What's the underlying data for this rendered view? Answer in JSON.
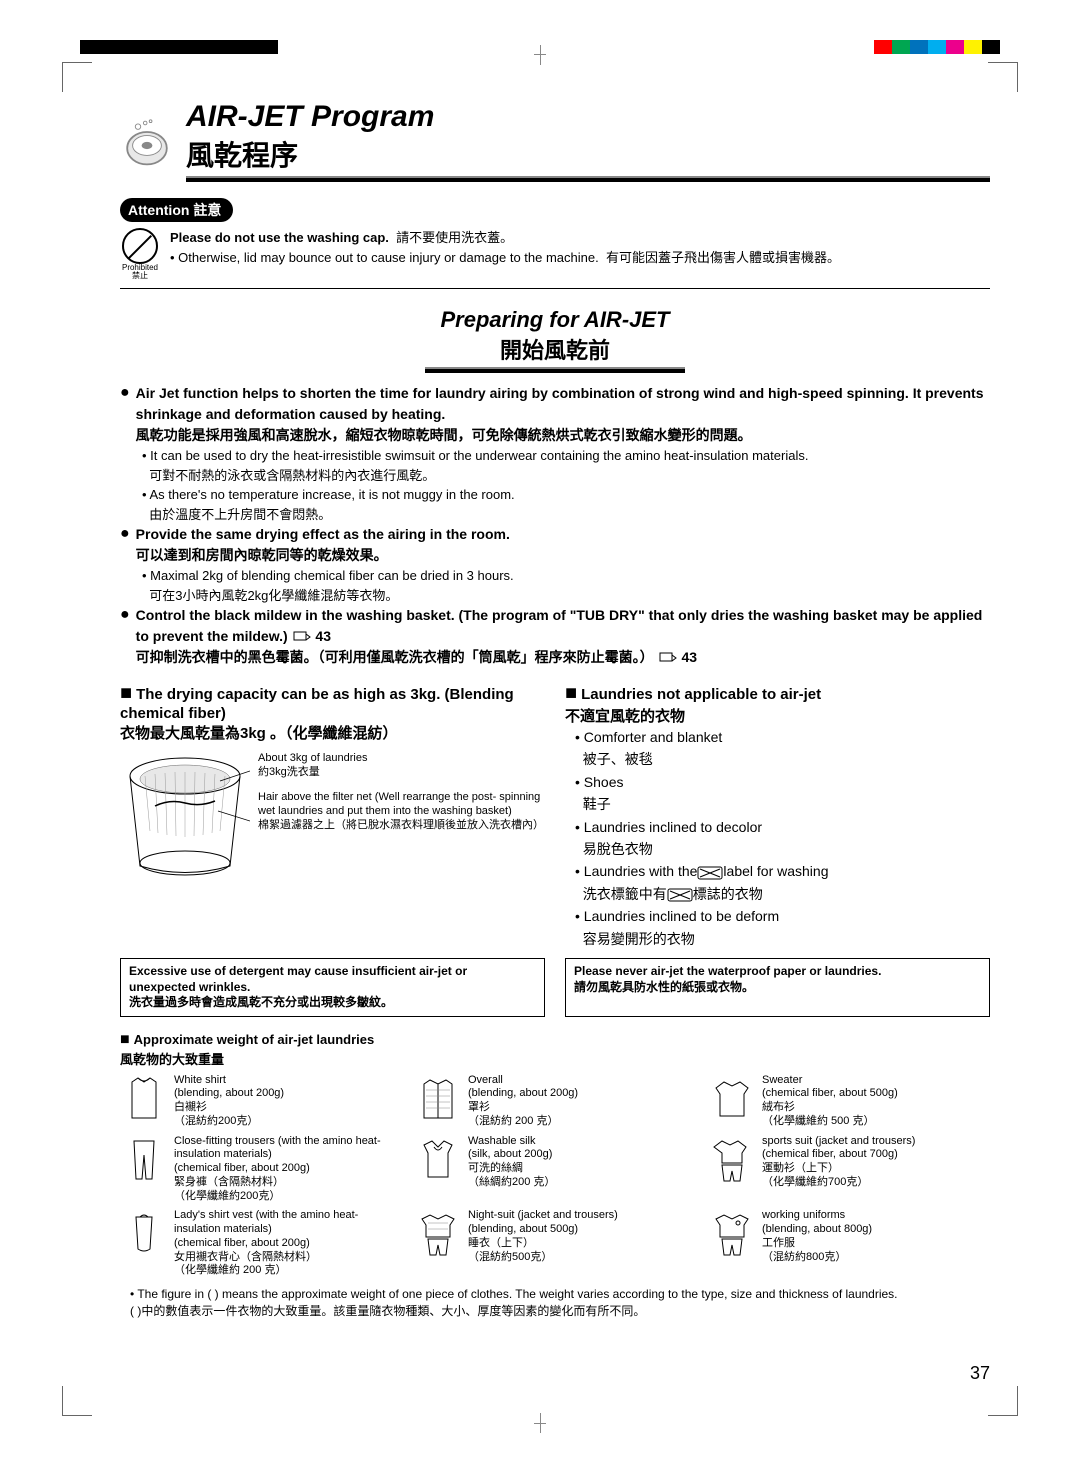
{
  "title": {
    "en": "AIR-JET Program",
    "cn": "風乾程序"
  },
  "attention": {
    "badge": "Attention 註意",
    "prohibit_label": "Prohibited\n禁止",
    "line1_en": "Please do not use the washing cap.",
    "line1_cn": "請不要使用洗衣蓋。",
    "line2_en": "• Otherwise, lid may bounce out to cause injury or damage to the machine.",
    "line2_cn": "有可能因蓋子飛出傷害人體或損害機器。"
  },
  "section": {
    "en": "Preparing for AIR-JET",
    "cn": "開始風乾前"
  },
  "bullets": [
    {
      "main_en": "Air Jet function helps to shorten the time for laundry airing by combination of strong wind and high-speed spinning. It prevents shrinkage and deformation caused by heating.",
      "main_cn": "風乾功能是採用強風和高速脫水，縮短衣物晾乾時間，可免除傳統熱烘式乾衣引致縮水變形的問題。",
      "subs": [
        {
          "en": "• It can be used to dry the heat-irresistible swimsuit or the underwear containing the amino heat-insulation materials.",
          "cn": "可對不耐熱的泳衣或含隔熱材料的內衣進行風乾。"
        },
        {
          "en": "• As there's no temperature increase, it is not muggy in the room.",
          "cn": "由於溫度不上升房間不會悶熱。"
        }
      ]
    },
    {
      "main_en": "Provide the same drying effect as the airing in the room.",
      "main_cn": "可以達到和房間內晾乾同等的乾燥效果。",
      "subs": [
        {
          "en": "• Maximal 2kg of blending chemical fiber can be dried in 3 hours.",
          "cn": "可在3小時內風乾2kg化學纖維混紡等衣物。"
        }
      ]
    },
    {
      "main_en": "Control the black mildew in the washing basket. (The program of \"TUB DRY\" that only dries the washing basket may be applied to prevent the mildew.)",
      "main_cn": "可抑制洗衣槽中的黑色霉菌。（可利用僅風乾洗衣槽的「筒風乾」程序來防止霉菌。）",
      "ref": "43",
      "subs": []
    }
  ],
  "left_col": {
    "title_en": "The drying capacity can be as high as 3kg. (Blending chemical fiber)",
    "title_cn": "衣物最大風乾量為3kg 。（化學纖維混紡）",
    "label1_en": "About 3kg of laundries",
    "label1_cn": "約3kg洗衣量",
    "label2_en": "Hair above the filter net (Well rearrange the post- spinning wet laundries and put them into the washing basket)",
    "label2_cn": "棉絮過濾器之上（將已脫水濕衣料理順後並放入洗衣槽內）"
  },
  "right_col": {
    "title_en": "Laundries not applicable to air-jet",
    "title_cn": "不適宜風乾的衣物",
    "items": [
      {
        "en": "• Comforter and blanket",
        "cn": "被子、被毯"
      },
      {
        "en": "• Shoes",
        "cn": "鞋子"
      },
      {
        "en": "• Laundries inclined to decolor",
        "cn": "易脫色衣物"
      },
      {
        "en": "• Laundries with the",
        "en2": "label for washing",
        "cn": "洗衣標籤中有",
        "cn2": "標誌的衣物",
        "icon": true
      },
      {
        "en": "• Laundries inclined to be deform",
        "cn": "容易變開形的衣物"
      }
    ]
  },
  "warn": {
    "left_en": "Excessive use of detergent may cause insufficient air-jet or unexpected wrinkles.",
    "left_cn": "洗衣量過多時會造成風乾不充分或出現較多皺紋。",
    "right_en": "Please never air-jet the waterproof paper or laundries.",
    "right_cn": "請勿風乾具防水性的紙張或衣物。"
  },
  "weight": {
    "title_en": "Approximate weight of air-jet laundries",
    "title_cn": "風乾物的大致重量",
    "items": [
      {
        "name_en": "White shirt",
        "detail_en": "(blending, about 200g)",
        "name_cn": "白襯衫",
        "detail_cn": "（混紡約200克）"
      },
      {
        "name_en": "Overall",
        "detail_en": "(blending, about 200g)",
        "name_cn": "罩衫",
        "detail_cn": "（混紡約 200 克）"
      },
      {
        "name_en": "Sweater",
        "detail_en": "(chemical fiber, about 500g)",
        "name_cn": "絨布衫",
        "detail_cn": "（化學纖維約 500 克）"
      },
      {
        "name_en": "Close-fitting trousers (with the amino heat-insulation materials)",
        "detail_en": "(chemical fiber, about 200g)",
        "name_cn": "緊身褲（含隔熱材料）",
        "detail_cn": "（化學纖維約200克）"
      },
      {
        "name_en": "Washable silk",
        "detail_en": "(silk, about 200g)",
        "name_cn": "可洗的絲綢",
        "detail_cn": "（絲綢約200 克）"
      },
      {
        "name_en": "sports suit (jacket and trousers)",
        "detail_en": "(chemical fiber, about 700g)",
        "name_cn": "運動衫（上下）",
        "detail_cn": "（化學纖維約700克）"
      },
      {
        "name_en": "Lady's shirt vest (with the amino heat- insulation materials)",
        "detail_en": "(chemical fiber, about 200g)",
        "name_cn": "女用襯衣背心（含隔熱材料）",
        "detail_cn": "（化學纖維約 200 克）"
      },
      {
        "name_en": "Night-suit (jacket and trousers)",
        "detail_en": "(blending, about 500g)",
        "name_cn": "睡衣（上下）",
        "detail_cn": "（混紡約500克）"
      },
      {
        "name_en": "working uniforms",
        "detail_en": "(blending, about 800g)",
        "name_cn": "工作服",
        "detail_cn": "（混紡約800克）"
      }
    ],
    "footnote_en": "• The figure in ( ) means the approximate weight of one piece of clothes. The weight varies according to the type, size and thickness of laundries.",
    "footnote_cn": "( )中的數值表示一件衣物的大致重量。該重量隨衣物種類、大小、厚度等因素的變化而有所不同。"
  },
  "page_number": "37",
  "colors": {
    "color_bar": [
      "#ff0000",
      "#00a651",
      "#0072bc",
      "#00aeef",
      "#ec008c",
      "#fff200",
      "#000000"
    ]
  }
}
